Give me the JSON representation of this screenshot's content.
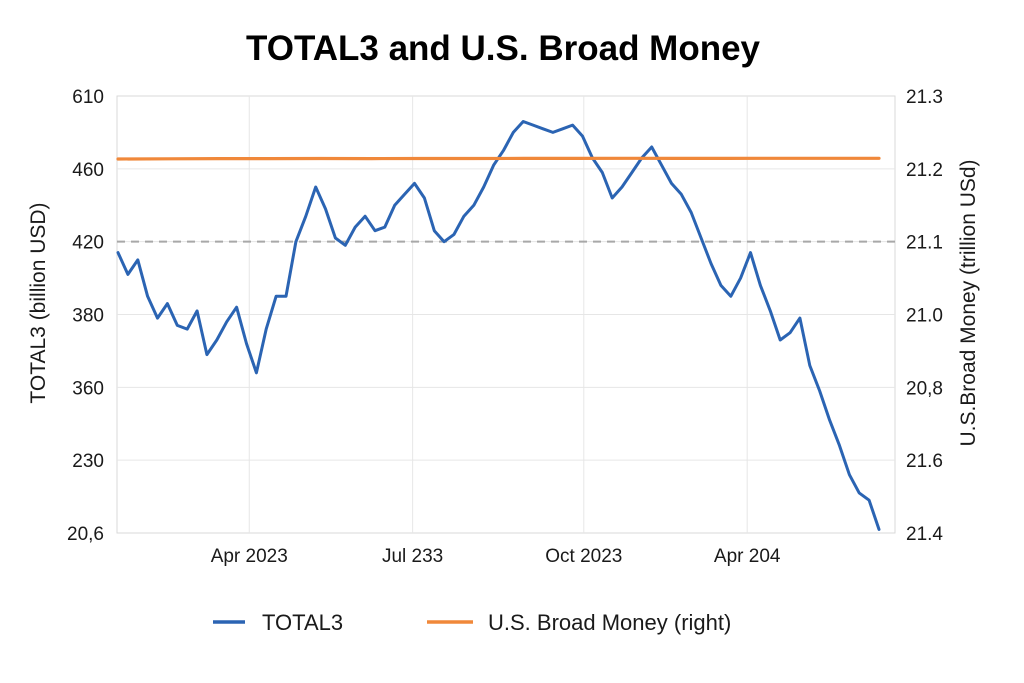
{
  "chart_data": {
    "type": "line",
    "title": "TOTAL3 and U.S. Broad Money",
    "ylabel_left": "TOTAL3 (billion USD)",
    "ylabel_right": "U.S.Broad Money (trillion USd)",
    "y_left_ticks": [
      "610",
      "460",
      "420",
      "380",
      "360",
      "230",
      "20,6"
    ],
    "y_right_ticks": [
      "21.3",
      "21.2",
      "21.1",
      "21.0",
      "20,8",
      "21.6",
      "21.4"
    ],
    "x_ticks": [
      "Apr 2023",
      "Jul 233",
      "Oct 2023",
      "Apr 204"
    ],
    "x_tick_positions": [
      0.17,
      0.38,
      0.6,
      0.81
    ],
    "grid": true,
    "reference_line": {
      "y_label": "420",
      "style": "dashed"
    },
    "legend_position": "bottom",
    "series": [
      {
        "name": "TOTAL3",
        "color": "#2b64b3",
        "axis": "left",
        "values_ordinal": [
          2.15,
          2.45,
          2.25,
          2.75,
          3.05,
          2.85,
          3.15,
          3.2,
          2.95,
          3.55,
          3.35,
          3.1,
          2.9,
          3.4,
          3.8,
          3.2,
          2.75,
          2.75,
          2.0,
          1.65,
          1.25,
          1.55,
          1.95,
          2.05,
          1.8,
          1.65,
          1.85,
          1.8,
          1.5,
          1.35,
          1.2,
          1.4,
          1.85,
          2.0,
          1.9,
          1.65,
          1.5,
          1.25,
          0.95,
          0.75,
          0.5,
          0.35,
          0.4,
          0.45,
          0.5,
          0.45,
          0.4,
          0.55,
          0.85,
          1.05,
          1.4,
          1.25,
          1.05,
          0.85,
          0.7,
          0.95,
          1.2,
          1.35,
          1.6,
          1.95,
          2.3,
          2.6,
          2.75,
          2.5,
          2.15,
          2.6,
          2.95,
          3.35,
          3.25,
          3.05,
          3.7,
          4.05,
          4.45,
          4.8,
          5.2,
          5.45,
          5.55,
          5.95
        ]
      },
      {
        "name": "U.S. Broad Money (right)",
        "color": "#f0883a",
        "axis": "right",
        "values_ordinal": [
          0.865,
          0.862,
          0.86,
          0.859,
          0.858,
          0.859,
          0.858,
          0.858,
          0.857,
          0.857,
          0.856,
          0.857,
          0.857,
          0.856,
          0.856,
          0.855
        ]
      }
    ]
  }
}
